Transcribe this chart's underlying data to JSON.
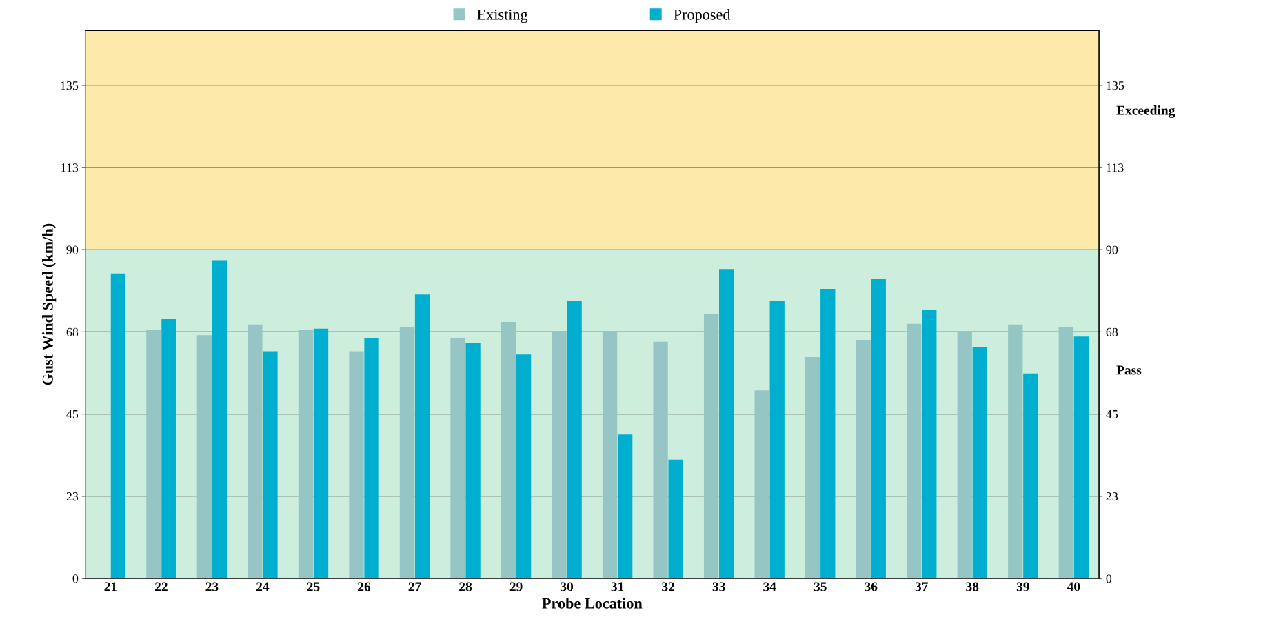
{
  "chart_data": {
    "type": "bar",
    "xlabel": "Probe Location",
    "ylabel": "Gust Wind Speed (km/h)",
    "categories": [
      "21",
      "22",
      "23",
      "24",
      "25",
      "26",
      "27",
      "28",
      "29",
      "30",
      "31",
      "32",
      "33",
      "34",
      "35",
      "36",
      "37",
      "38",
      "39",
      "40"
    ],
    "series": [
      {
        "name": "Existing",
        "color": "#96c5c6",
        "values": [
          null,
          68,
          66.6,
          69.5,
          68,
          62.2,
          68.8,
          65.9,
          70.2,
          67.7,
          67.7,
          64.8,
          72.4,
          51.5,
          60.6,
          65.3,
          69.7,
          67.5,
          69.5,
          68.8
        ]
      },
      {
        "name": "Proposed",
        "color": "#00afd0",
        "values": [
          83.5,
          71.1,
          87.1,
          62.2,
          68.4,
          65.9,
          77.7,
          64.4,
          61.3,
          76.0,
          39.4,
          32.5,
          84.7,
          76.0,
          79.3,
          82.0,
          73.5,
          63.3,
          56.1,
          66.2
        ]
      }
    ],
    "ylim": [
      0,
      150
    ],
    "yticks": [
      0,
      {
        "value": 22.5,
        "label": "23"
      },
      45,
      {
        "value": 67.5,
        "label": "68"
      },
      90,
      {
        "value": 112.5,
        "label": "113"
      },
      135
    ],
    "y2lim": [
      0,
      150
    ],
    "y2ticks": [
      0,
      {
        "value": 22.5,
        "label": "23"
      },
      45,
      {
        "value": 67.5,
        "label": "68"
      },
      90,
      {
        "value": 112.5,
        "label": "113"
      },
      135
    ],
    "bands": [
      {
        "axis": "y",
        "from": 0,
        "to": 90,
        "label": "Pass",
        "color": "#cdeedc"
      },
      {
        "axis": "y",
        "from": 90,
        "to": 150,
        "label": "Exceeding",
        "color": "#fde9a9"
      }
    ],
    "grid": "y",
    "legend": "top"
  }
}
